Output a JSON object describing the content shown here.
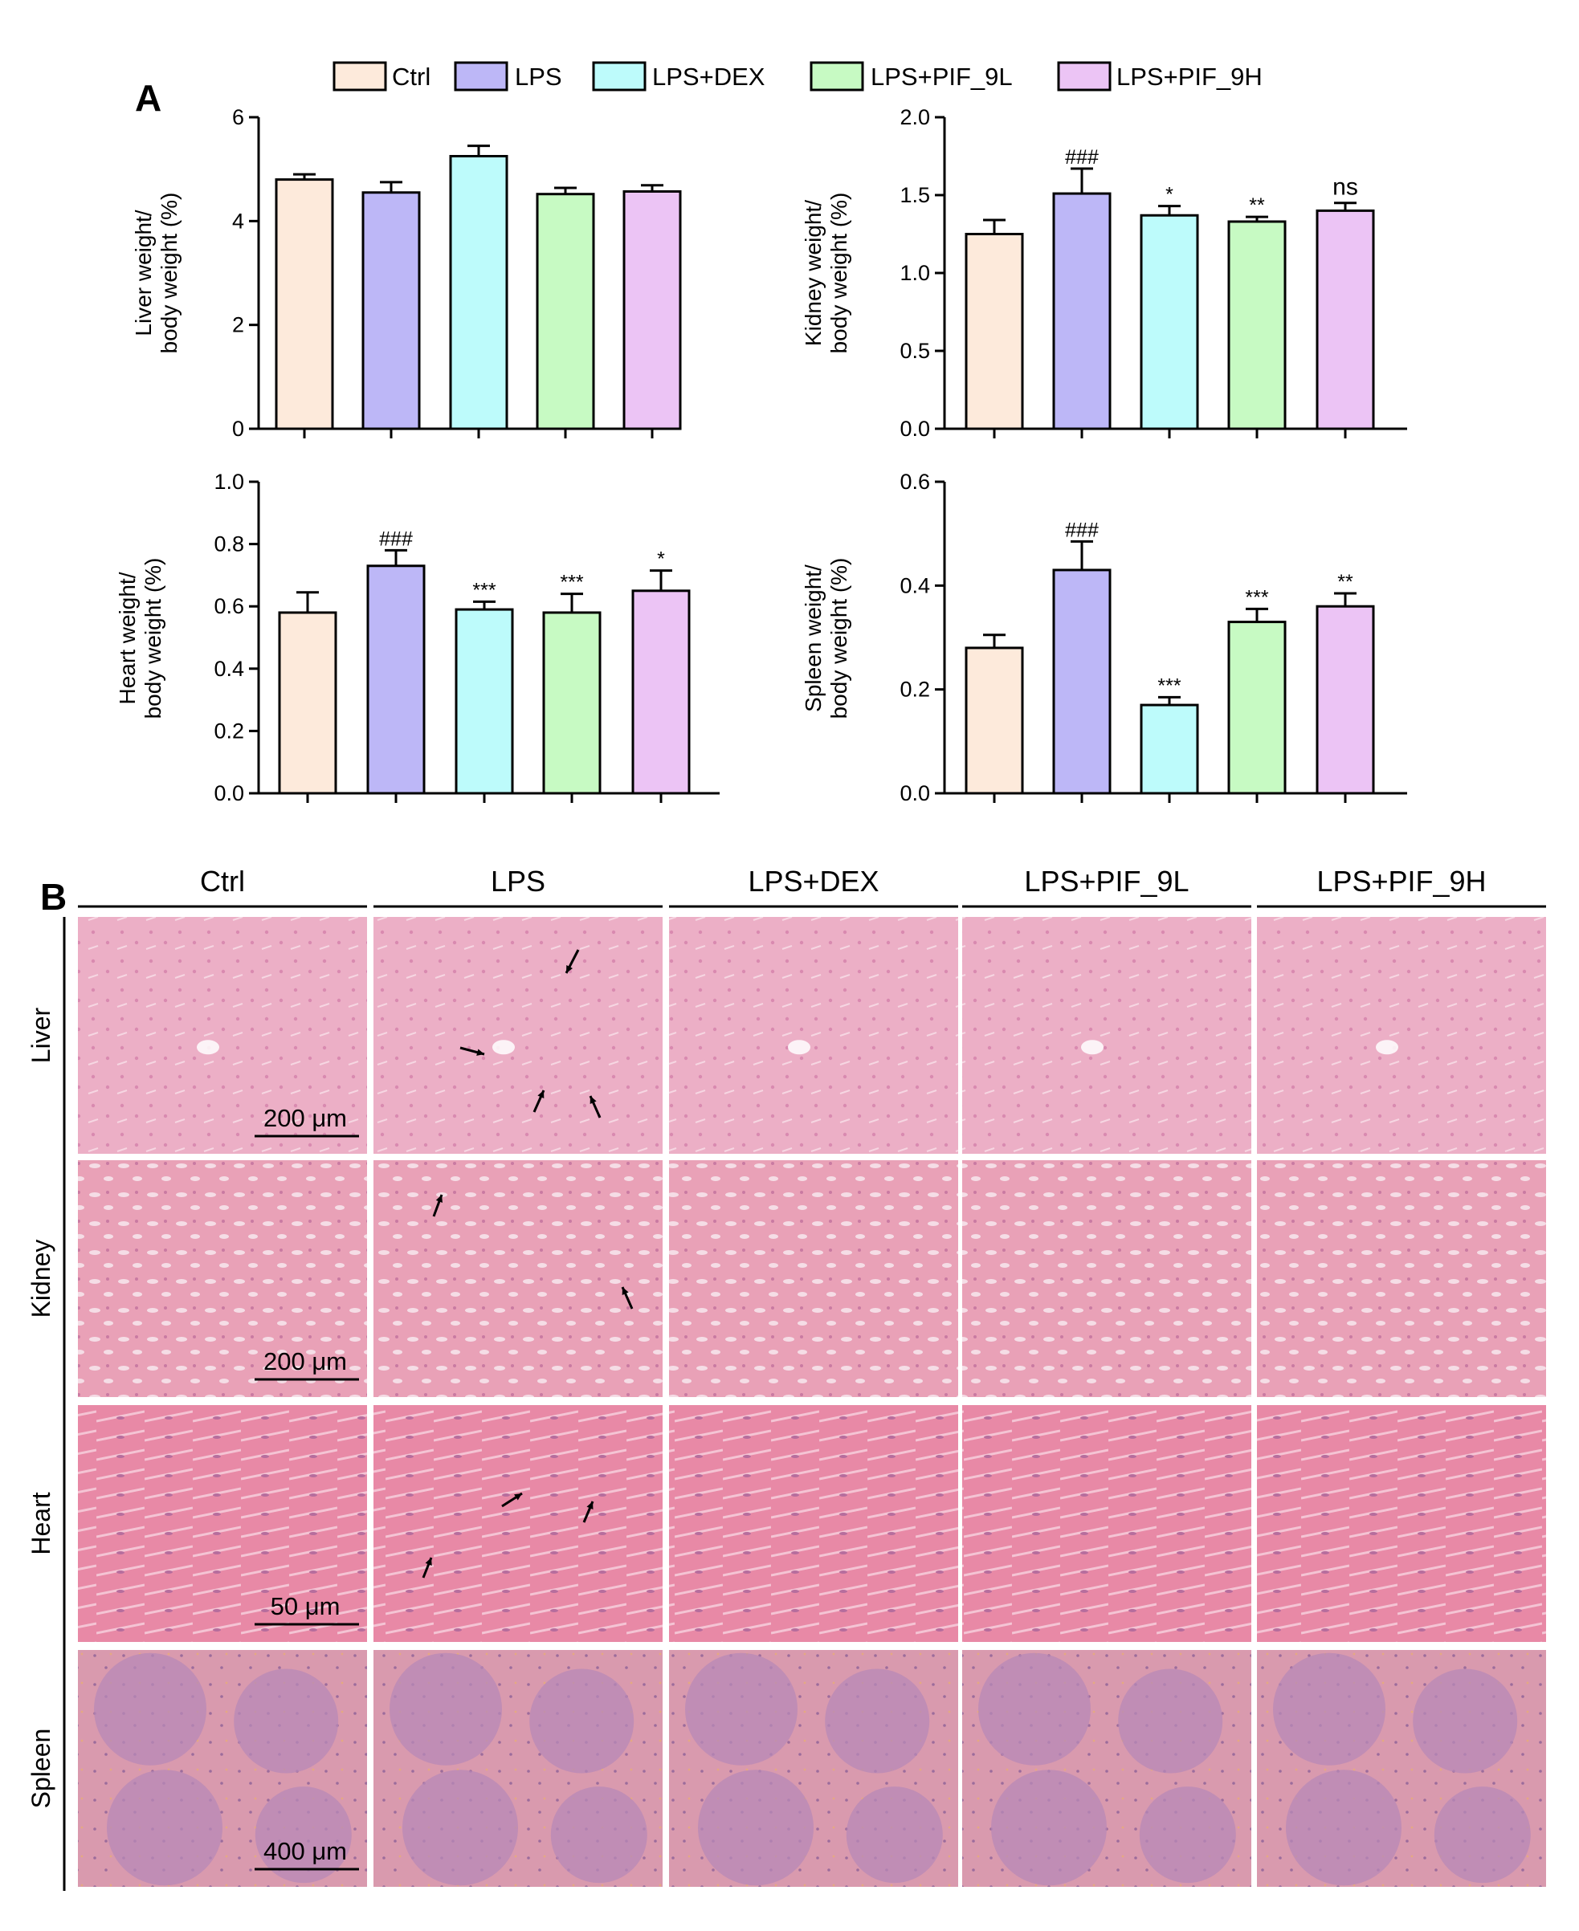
{
  "panel_labels": {
    "a": "A",
    "b": "B"
  },
  "legend": [
    {
      "label": "Ctrl",
      "color": "#fdeadb"
    },
    {
      "label": "LPS",
      "color": "#bdb7f7"
    },
    {
      "label": "LPS+DEX",
      "color": "#bdfbfb"
    },
    {
      "label": "LPS+PIF_9L",
      "color": "#c7fac3"
    },
    {
      "label": "LPS+PIF_9H",
      "color": "#ecc4f5"
    }
  ],
  "chart_data": [
    {
      "type": "bar",
      "ylabel": [
        "Liver weight/",
        "body weight (%)"
      ],
      "ylim": [
        0,
        6
      ],
      "yticks": [
        0,
        2,
        4,
        6
      ],
      "categories": [
        "Ctrl",
        "LPS",
        "LPS+DEX",
        "LPS+PIF_9L",
        "LPS+PIF_9H"
      ],
      "values": [
        4.8,
        4.55,
        5.25,
        4.52,
        4.57
      ],
      "errors": [
        0.1,
        0.2,
        0.2,
        0.12,
        0.12
      ],
      "significance": [
        "",
        "",
        "",
        "",
        ""
      ]
    },
    {
      "type": "bar",
      "ylabel": [
        "Kidney weight/",
        "body weight (%)"
      ],
      "ylim": [
        0,
        2.0
      ],
      "yticks": [
        "0.0",
        "0.5",
        "1.0",
        "1.5",
        "2.0"
      ],
      "categories": [
        "Ctrl",
        "LPS",
        "LPS+DEX",
        "LPS+PIF_9L",
        "LPS+PIF_9H"
      ],
      "values": [
        1.25,
        1.51,
        1.37,
        1.33,
        1.4
      ],
      "errors": [
        0.09,
        0.16,
        0.06,
        0.03,
        0.05
      ],
      "significance": [
        "",
        "###",
        "*",
        "**",
        "ns"
      ]
    },
    {
      "type": "bar",
      "ylabel": [
        "Heart weight/",
        "body weight (%)"
      ],
      "ylim": [
        0,
        1.0
      ],
      "yticks": [
        "0.0",
        "0.2",
        "0.4",
        "0.6",
        "0.8",
        "1.0"
      ],
      "categories": [
        "Ctrl",
        "LPS",
        "LPS+DEX",
        "LPS+PIF_9L",
        "LPS+PIF_9H"
      ],
      "values": [
        0.58,
        0.73,
        0.59,
        0.58,
        0.65
      ],
      "errors": [
        0.065,
        0.05,
        0.025,
        0.06,
        0.065
      ],
      "significance": [
        "",
        "###",
        "***",
        "***",
        "*"
      ]
    },
    {
      "type": "bar",
      "ylabel": [
        "Spleen weight/",
        "body weight (%)"
      ],
      "ylim": [
        0,
        0.6
      ],
      "yticks": [
        "0.0",
        "0.2",
        "0.4",
        "0.6"
      ],
      "categories": [
        "Ctrl",
        "LPS",
        "LPS+DEX",
        "LPS+PIF_9L",
        "LPS+PIF_9H"
      ],
      "values": [
        0.28,
        0.43,
        0.17,
        0.33,
        0.36
      ],
      "errors": [
        0.025,
        0.055,
        0.015,
        0.025,
        0.025
      ],
      "significance": [
        "",
        "###",
        "***",
        "***",
        "**"
      ]
    }
  ],
  "histology": {
    "columns": [
      "Ctrl",
      "LPS",
      "LPS+DEX",
      "LPS+PIF_9L",
      "LPS+PIF_9H"
    ],
    "rows": [
      {
        "label": "Liver",
        "scale_bar": "200 μm",
        "tone": "#ecafc6",
        "texture": "#d98ab0"
      },
      {
        "label": "Kidney",
        "scale_bar": "200 μm",
        "tone": "#e9a1b7",
        "texture": "#c97aa2"
      },
      {
        "label": "Heart",
        "scale_bar": "50 μm",
        "tone": "#e889a6",
        "texture": "#b66d9d"
      },
      {
        "label": "Spleen",
        "scale_bar": "400 μm",
        "tone": "#d99aae",
        "texture": "#9c6c9c"
      }
    ]
  }
}
